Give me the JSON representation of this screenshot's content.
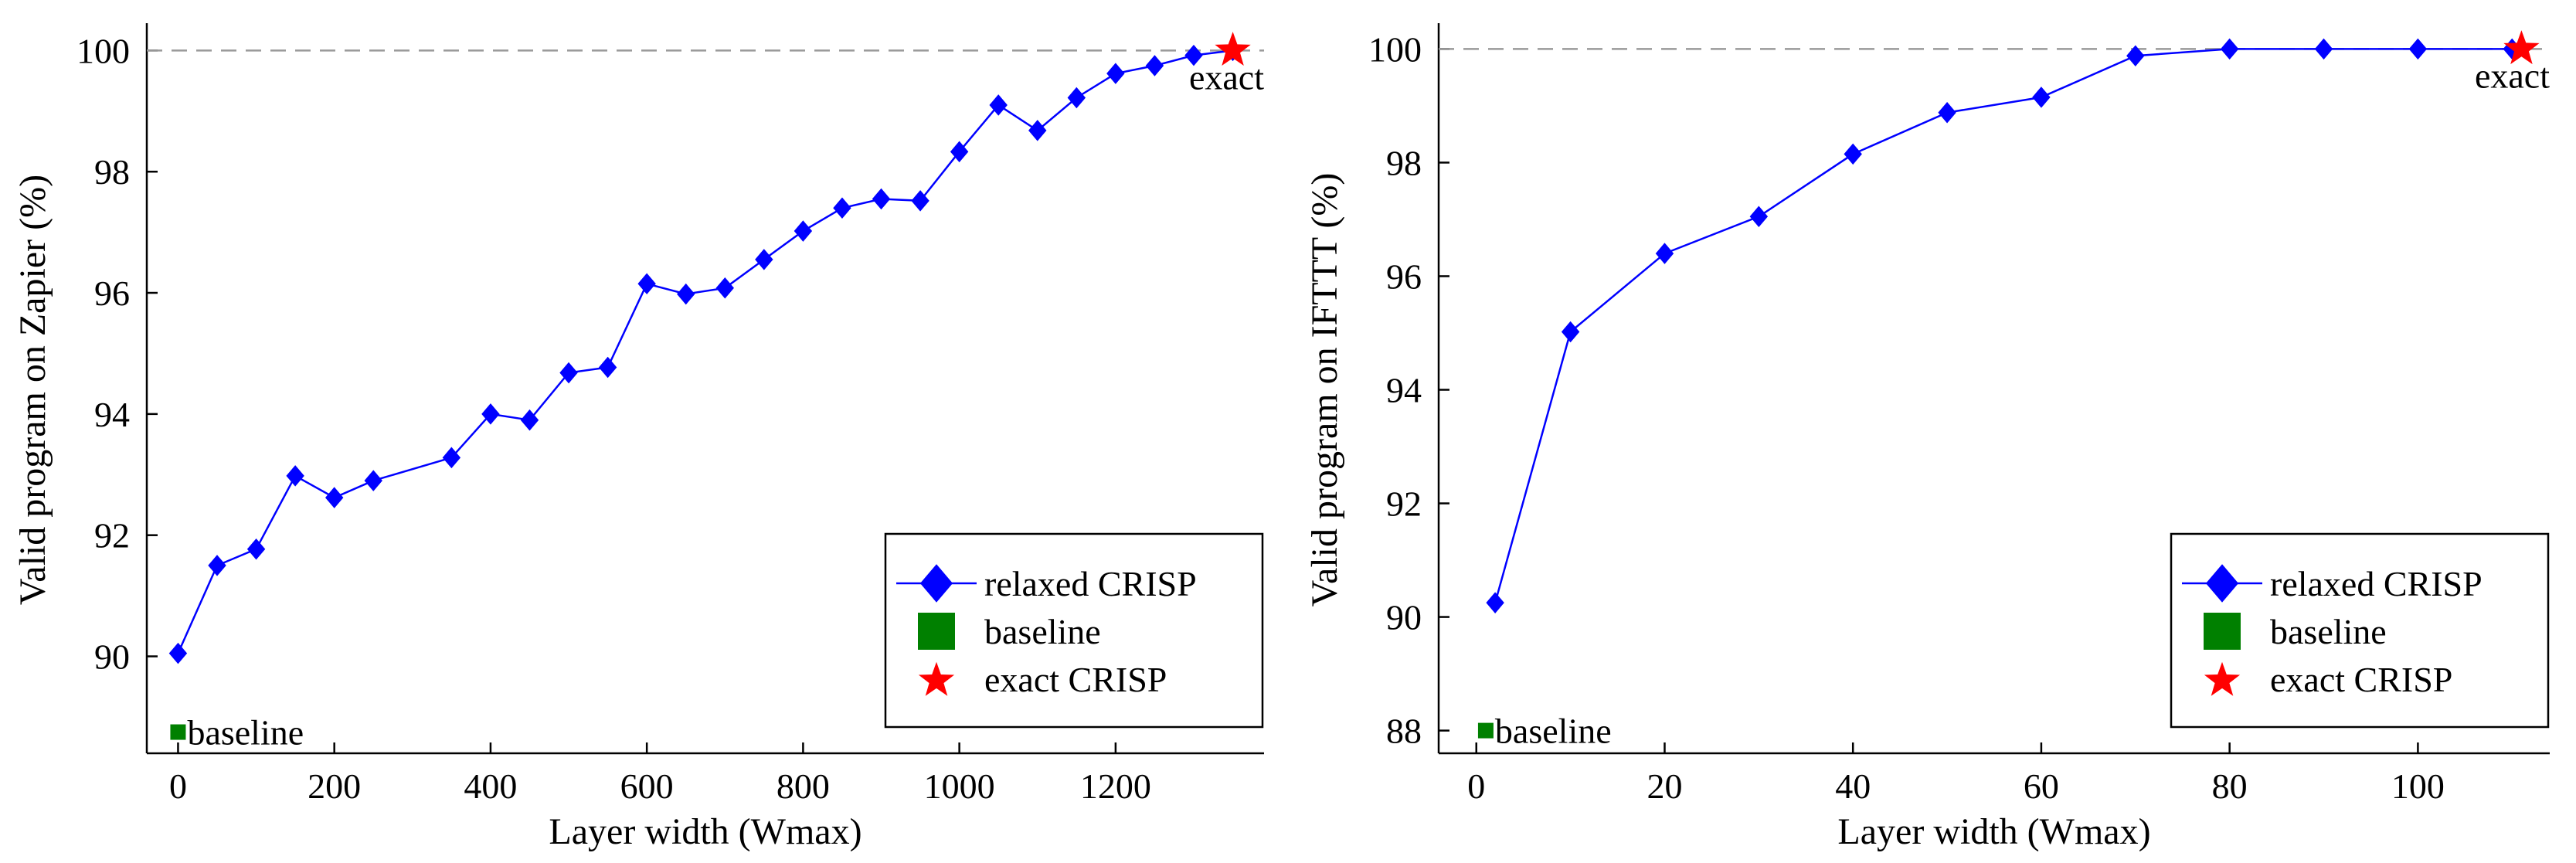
{
  "chart_data": [
    {
      "type": "line",
      "xlabel": "Layer width (Wmax)",
      "ylabel": "Valid program on Zapier (%)",
      "xlim": [
        -40,
        1390
      ],
      "ylim": [
        88.4,
        100.4
      ],
      "xticks": [
        0,
        200,
        400,
        600,
        800,
        1000,
        1200
      ],
      "yticks": [
        90,
        92,
        94,
        96,
        98,
        100
      ],
      "reference_line": {
        "y": 100,
        "style": "dashed",
        "color": "#999999"
      },
      "series": [
        {
          "name": "relaxed CRISP",
          "color": "#0000ff",
          "marker": "diamond",
          "x": [
            0,
            50,
            100,
            150,
            200,
            250,
            350,
            400,
            450,
            500,
            550,
            600,
            650,
            700,
            750,
            800,
            850,
            900,
            950,
            1000,
            1050,
            1100,
            1150,
            1200,
            1250,
            1300,
            1350
          ],
          "y": [
            90.05,
            91.5,
            91.77,
            92.98,
            92.62,
            92.9,
            93.28,
            94.0,
            93.9,
            94.68,
            94.77,
            96.15,
            95.98,
            96.08,
            96.55,
            97.02,
            97.4,
            97.55,
            97.52,
            98.33,
            99.1,
            98.68,
            99.22,
            99.62,
            99.75,
            99.92,
            100.0
          ]
        },
        {
          "name": "baseline",
          "color": "#008000",
          "marker": "square",
          "x": [
            0
          ],
          "y": [
            88.75
          ]
        },
        {
          "name": "exact CRISP",
          "color": "#ff0000",
          "marker": "star",
          "x": [
            1350
          ],
          "y": [
            100.0
          ]
        }
      ],
      "annotations": {
        "baseline": "baseline",
        "exact": "exact"
      },
      "legend": {
        "position": "bottom-right",
        "entries": [
          "relaxed CRISP",
          "baseline",
          "exact CRISP"
        ]
      },
      "grid": false
    },
    {
      "type": "line",
      "xlabel": "Layer width (Wmax)",
      "ylabel": "Valid program on IFTTT (%)",
      "xlim": [
        -4,
        114
      ],
      "ylim": [
        87.6,
        100.4
      ],
      "xticks": [
        0,
        20,
        40,
        60,
        80,
        100
      ],
      "yticks": [
        88,
        90,
        92,
        94,
        96,
        98,
        100
      ],
      "reference_line": {
        "y": 100,
        "style": "dashed",
        "color": "#999999"
      },
      "series": [
        {
          "name": "relaxed CRISP",
          "color": "#0000ff",
          "marker": "diamond",
          "x": [
            2,
            10,
            20,
            30,
            40,
            50,
            60,
            70,
            80,
            90,
            100,
            110
          ],
          "y": [
            90.25,
            95.02,
            96.4,
            97.05,
            98.15,
            98.88,
            99.15,
            99.88,
            100.0,
            100.0,
            100.0,
            100.0
          ]
        },
        {
          "name": "baseline",
          "color": "#008000",
          "marker": "square",
          "x": [
            1
          ],
          "y": [
            88.0
          ]
        },
        {
          "name": "exact CRISP",
          "color": "#ff0000",
          "marker": "star",
          "x": [
            111
          ],
          "y": [
            100.0
          ]
        }
      ],
      "annotations": {
        "baseline": "baseline",
        "exact": "exact"
      },
      "legend": {
        "position": "bottom-right",
        "entries": [
          "relaxed CRISP",
          "baseline",
          "exact CRISP"
        ]
      },
      "grid": false
    }
  ]
}
